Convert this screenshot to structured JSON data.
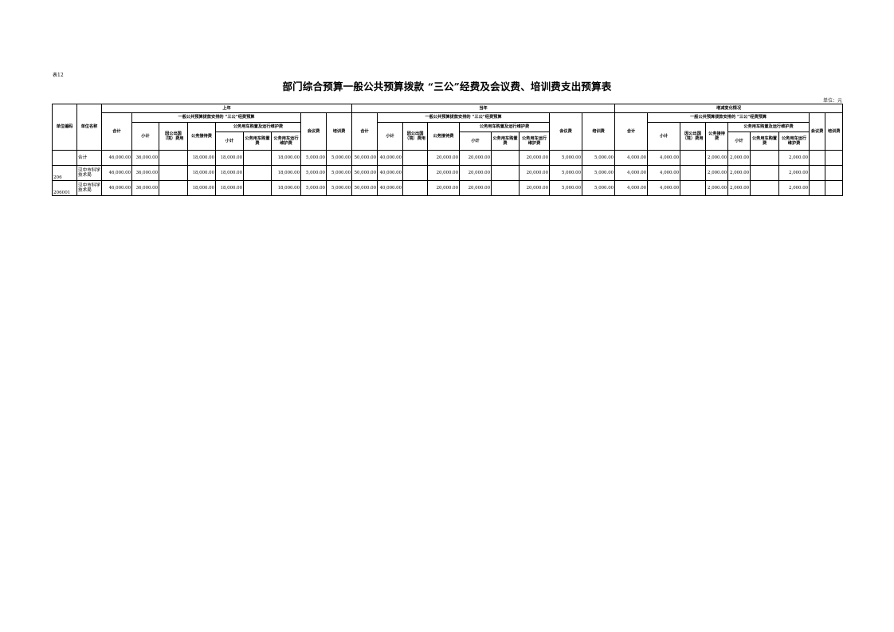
{
  "table_no": "表12",
  "title": "部门综合预算一般公共预算拨款 “三公”经费及会议费、培训费支出预算表",
  "unit": "单位：元",
  "headers": {
    "unit_code": "单位编码",
    "unit_name": "单位名称",
    "groups": [
      "上年",
      "当年",
      "增减变化情况"
    ],
    "total": "合计",
    "sangong": "一般公共预算拨款安排的 “三公”经费预算",
    "subtotal": "小计",
    "abroad": "因公出国（境）费用",
    "reception": "公务接待费",
    "vehicle": "公务用车购置及运行维护费",
    "vehicle_subtotal": "小计",
    "vehicle_purchase": "公务用车购置费",
    "vehicle_operation": "公务用车运行维护费",
    "meeting": "会议费",
    "training": "培训费"
  },
  "rows": [
    {
      "code": "",
      "name": "合计",
      "values": [
        "46,000.00",
        "36,000.00",
        "",
        "18,000.00",
        "18,000.00",
        "",
        "18,000.00",
        "5,000.00",
        "5,000.00",
        "50,000.00",
        "40,000.00",
        "",
        "20,000.00",
        "20,000.00",
        "",
        "20,000.00",
        "5,000.00",
        "5,000.00",
        "4,000.00",
        "4,000.00",
        "",
        "2,000.00",
        "2,000.00",
        "",
        "2,000.00",
        "",
        ""
      ]
    },
    {
      "code": "206",
      "name": "汉中市科学技术局",
      "values": [
        "46,000.00",
        "36,000.00",
        "",
        "18,000.00",
        "18,000.00",
        "",
        "18,000.00",
        "5,000.00",
        "5,000.00",
        "50,000.00",
        "40,000.00",
        "",
        "20,000.00",
        "20,000.00",
        "",
        "20,000.00",
        "5,000.00",
        "5,000.00",
        "4,000.00",
        "4,000.00",
        "",
        "2,000.00",
        "2,000.00",
        "",
        "2,000.00",
        "",
        ""
      ]
    },
    {
      "code": "206001",
      "name": "汉中市科学技术局",
      "values": [
        "46,000.00",
        "36,000.00",
        "",
        "18,000.00",
        "18,000.00",
        "",
        "18,000.00",
        "5,000.00",
        "5,000.00",
        "50,000.00",
        "40,000.00",
        "",
        "20,000.00",
        "20,000.00",
        "",
        "20,000.00",
        "5,000.00",
        "5,000.00",
        "4,000.00",
        "4,000.00",
        "",
        "2,000.00",
        "2,000.00",
        "",
        "2,000.00",
        "",
        ""
      ]
    }
  ]
}
